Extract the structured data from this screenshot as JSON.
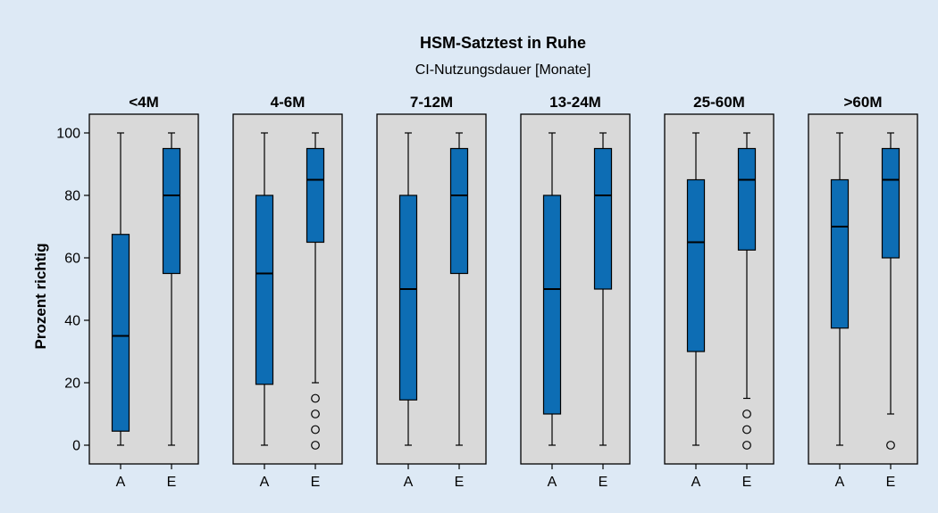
{
  "chart_data": {
    "type": "box",
    "title": "HSM-Satztest in Ruhe",
    "subtitle": "CI-Nutzungsdauer [Monate]",
    "ylabel": "Prozent richtig",
    "ylim": [
      -6,
      106
    ],
    "yticks": [
      0,
      20,
      40,
      60,
      80,
      100
    ],
    "grid": false,
    "categories": [
      "A",
      "E"
    ],
    "colors": {
      "page_background": "#dde9f5",
      "panel_background": "#d9d9d9",
      "box_fill": "#0d6db4"
    },
    "panels": [
      {
        "label": "<4M",
        "boxes": {
          "A": {
            "whisker_low": 0,
            "q1": 4.5,
            "median": 35,
            "q3": 67.5,
            "whisker_high": 100,
            "outliers": []
          },
          "E": {
            "whisker_low": 0,
            "q1": 55,
            "median": 80,
            "q3": 95,
            "whisker_high": 100,
            "outliers": []
          }
        }
      },
      {
        "label": "4-6M",
        "boxes": {
          "A": {
            "whisker_low": 0,
            "q1": 19.5,
            "median": 55,
            "q3": 80,
            "whisker_high": 100,
            "outliers": []
          },
          "E": {
            "whisker_low": 20,
            "q1": 65,
            "median": 85,
            "q3": 95,
            "whisker_high": 100,
            "outliers": [
              15,
              10,
              5,
              0
            ]
          }
        }
      },
      {
        "label": "7-12M",
        "boxes": {
          "A": {
            "whisker_low": 0,
            "q1": 14.5,
            "median": 50,
            "q3": 80,
            "whisker_high": 100,
            "outliers": []
          },
          "E": {
            "whisker_low": 0,
            "q1": 55,
            "median": 80,
            "q3": 95,
            "whisker_high": 100,
            "outliers": []
          }
        }
      },
      {
        "label": "13-24M",
        "boxes": {
          "A": {
            "whisker_low": 0,
            "q1": 10,
            "median": 50,
            "q3": 80,
            "whisker_high": 100,
            "outliers": []
          },
          "E": {
            "whisker_low": 0,
            "q1": 50,
            "median": 80,
            "q3": 95,
            "whisker_high": 100,
            "outliers": []
          }
        }
      },
      {
        "label": "25-60M",
        "boxes": {
          "A": {
            "whisker_low": 0,
            "q1": 30,
            "median": 65,
            "q3": 85,
            "whisker_high": 100,
            "outliers": []
          },
          "E": {
            "whisker_low": 15,
            "q1": 62.5,
            "median": 85,
            "q3": 95,
            "whisker_high": 100,
            "outliers": [
              10,
              5,
              0
            ]
          }
        }
      },
      {
        "label": ">60M",
        "boxes": {
          "A": {
            "whisker_low": 0,
            "q1": 37.5,
            "median": 70,
            "q3": 85,
            "whisker_high": 100,
            "outliers": []
          },
          "E": {
            "whisker_low": 10,
            "q1": 60,
            "median": 85,
            "q3": 95,
            "whisker_high": 100,
            "outliers": [
              0
            ]
          }
        }
      }
    ]
  }
}
